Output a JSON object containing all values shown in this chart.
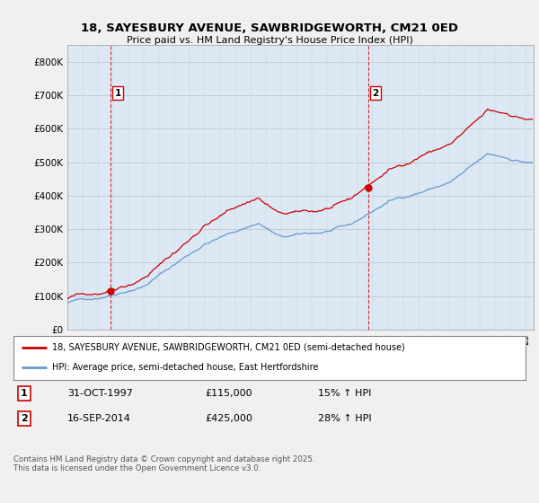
{
  "title_line1": "18, SAYESBURY AVENUE, SAWBRIDGEWORTH, CM21 0ED",
  "title_line2": "Price paid vs. HM Land Registry's House Price Index (HPI)",
  "legend_line1": "18, SAYESBURY AVENUE, SAWBRIDGEWORTH, CM21 0ED (semi-detached house)",
  "legend_line2": "HPI: Average price, semi-detached house, East Hertfordshire",
  "annotation1_label": "1",
  "annotation1_date": "31-OCT-1997",
  "annotation1_price": "£115,000",
  "annotation1_hpi": "15% ↑ HPI",
  "annotation2_label": "2",
  "annotation2_date": "16-SEP-2014",
  "annotation2_price": "£425,000",
  "annotation2_hpi": "28% ↑ HPI",
  "footer": "Contains HM Land Registry data © Crown copyright and database right 2025.\nThis data is licensed under the Open Government Licence v3.0.",
  "price_color": "#cc0000",
  "hpi_color": "#6699cc",
  "background_color": "#f0f0f0",
  "plot_bg_color": "#dce9f5",
  "ylim": [
    0,
    850000
  ],
  "ylabel_ticks": [
    0,
    100000,
    200000,
    300000,
    400000,
    500000,
    600000,
    700000,
    800000
  ],
  "ylabel_labels": [
    "£0",
    "£100K",
    "£200K",
    "£300K",
    "£400K",
    "£500K",
    "£600K",
    "£700K",
    "£800K"
  ],
  "sale1_x": 1997.833,
  "sale1_y": 115000,
  "sale2_x": 2014.708,
  "sale2_y": 425000,
  "vline1_x": 1997.833,
  "vline2_x": 2014.708,
  "xmin": 1995.0,
  "xmax": 2025.5
}
